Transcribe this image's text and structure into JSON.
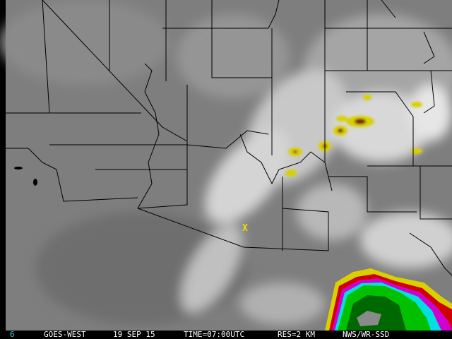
{
  "footer": {
    "channel": "6",
    "satellite": "GOES-WEST",
    "date": "19 SEP 15",
    "time": "TIME=07:00UTC",
    "resolution": "RES=2 KM",
    "source": "NWS/WR-SSD"
  },
  "map": {
    "marker_label": "X",
    "colors": {
      "background_gray": "#7a7a7a",
      "cloud_white": "#e8e8e8",
      "enhancement_yellow": "#d8d000",
      "enhancement_red": "#d00000",
      "enhancement_magenta": "#d000d0",
      "enhancement_cyan": "#00e0e0",
      "enhancement_green": "#00c000",
      "enhancement_darkgreen": "#006800",
      "channel_label": "#33c8e8"
    }
  }
}
